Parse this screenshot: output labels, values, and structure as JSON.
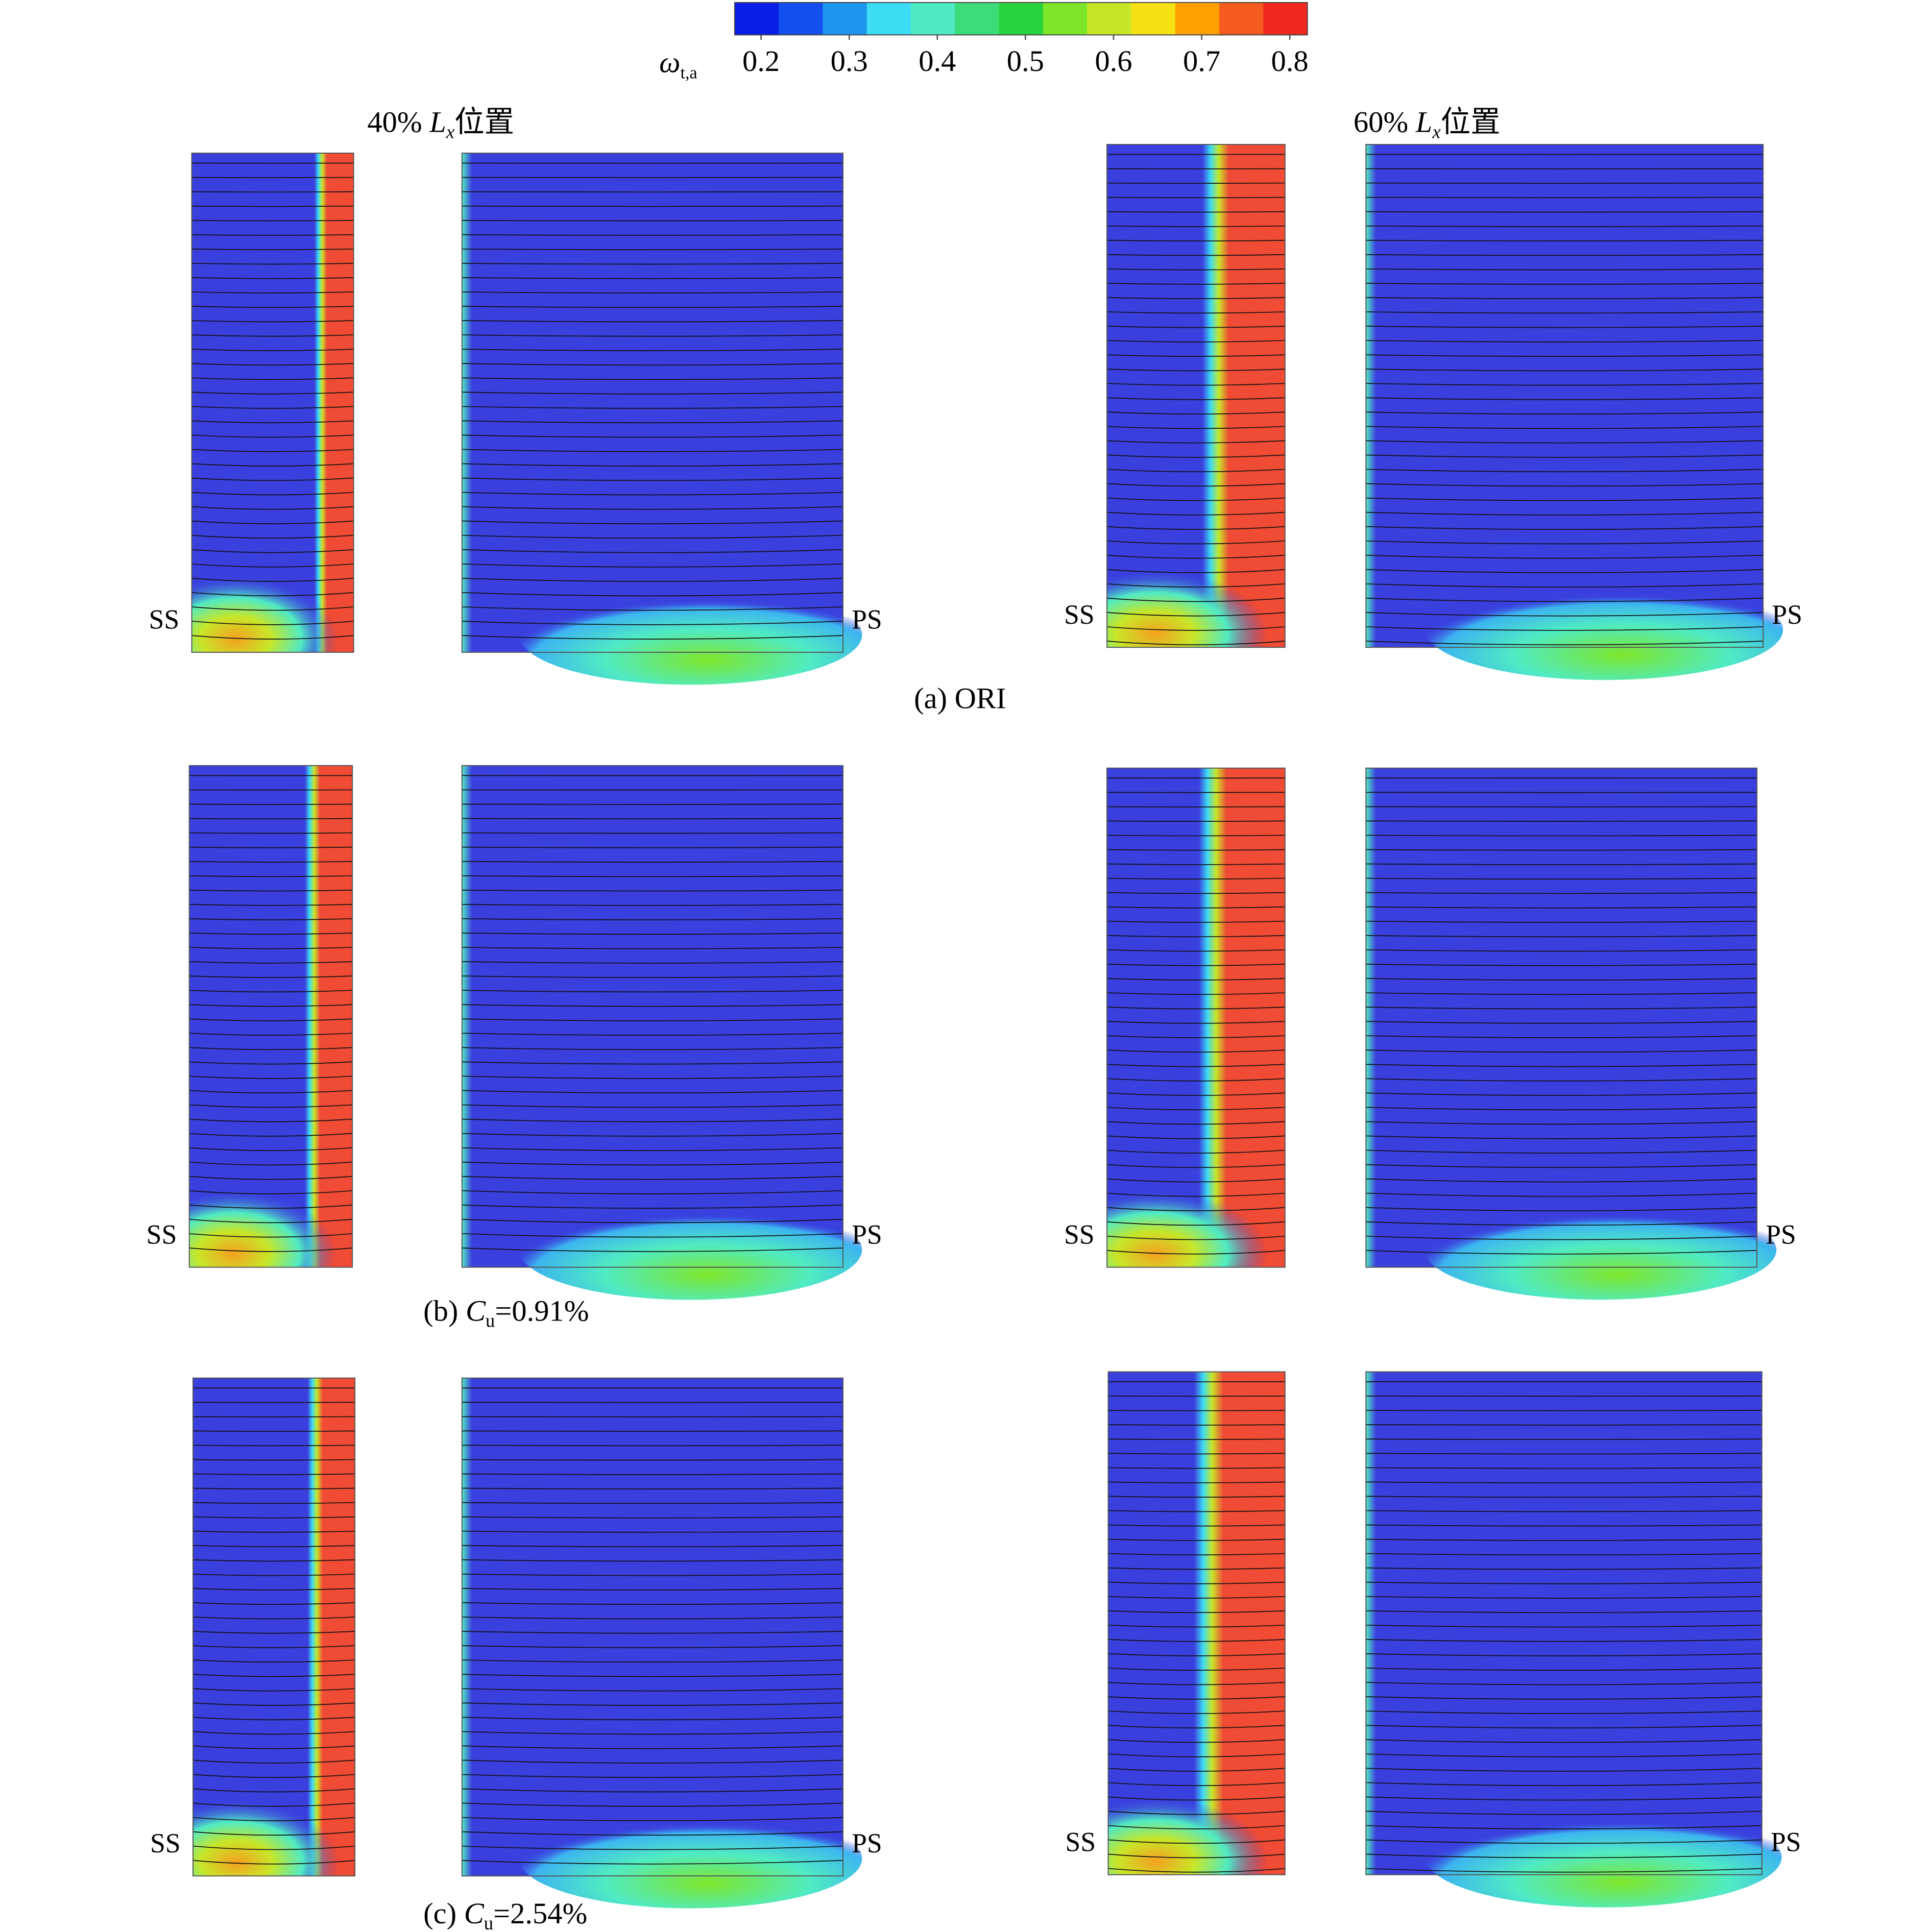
{
  "colorbar": {
    "label": "ω",
    "label_sub": "t,a",
    "range": [
      0.17,
      0.82
    ],
    "ticks": [
      0.2,
      0.3,
      0.4,
      0.5,
      0.6,
      0.7,
      0.8
    ],
    "colors": [
      "#0a1ee6",
      "#1450f0",
      "#1e96f0",
      "#3cdcf5",
      "#50ebc3",
      "#3cdc78",
      "#28d23c",
      "#7ee62a",
      "#c8e628",
      "#f5e014",
      "#ffa000",
      "#f55a1e",
      "#f0281e"
    ]
  },
  "columns": [
    {
      "prefix": "40% ",
      "var": "L",
      "sub": "x",
      "suffix": "位置"
    },
    {
      "prefix": "60% ",
      "var": "L",
      "sub": "x",
      "suffix": "位置"
    }
  ],
  "rows": [
    {
      "caption": {
        "text": "(a) ORI"
      },
      "labels": [
        "SS",
        "PS",
        "SS",
        "PS"
      ]
    },
    {
      "caption": {
        "prefix": "(b) ",
        "var": "C",
        "sub": "u",
        "suffix": "=0.91%"
      },
      "labels": [
        "SS",
        "PS",
        "SS",
        "PS"
      ]
    },
    {
      "caption": {
        "prefix": "(c) ",
        "var": "C",
        "sub": "u",
        "suffix": "=2.54%"
      },
      "labels": [
        "SS",
        "PS",
        "SS",
        "PS"
      ]
    }
  ]
}
